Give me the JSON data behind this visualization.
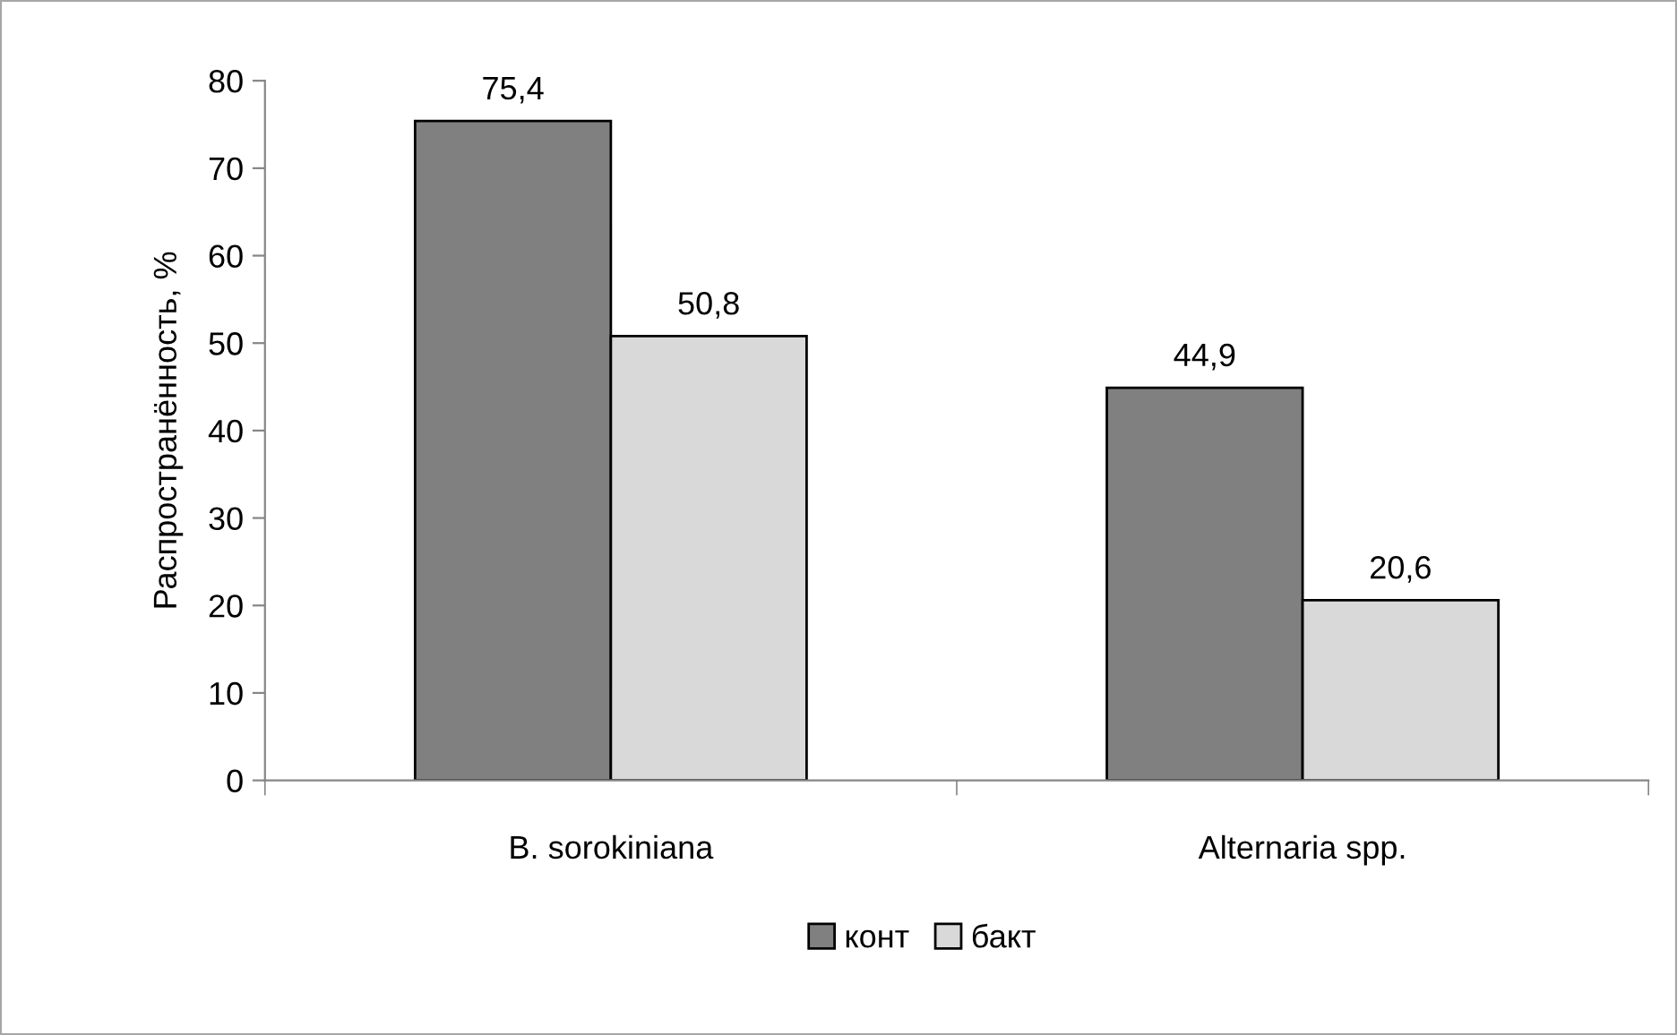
{
  "chart_data": {
    "type": "bar",
    "ylabel": "Распространённость, %",
    "categories": [
      "B. sorokiniana",
      "Alternaria spp."
    ],
    "series": [
      {
        "name": "конт",
        "color": "#808080",
        "values": [
          75.4,
          44.9
        ],
        "value_labels": [
          "75,4",
          "44,9"
        ]
      },
      {
        "name": "бакт",
        "color": "#d9d9d9",
        "values": [
          50.8,
          20.6
        ],
        "value_labels": [
          "50,8",
          "20,6"
        ]
      }
    ],
    "ylim": [
      0,
      80
    ],
    "yticks": [
      0,
      10,
      20,
      30,
      40,
      50,
      60,
      70,
      80
    ],
    "grid": false,
    "legend": "bottom"
  }
}
